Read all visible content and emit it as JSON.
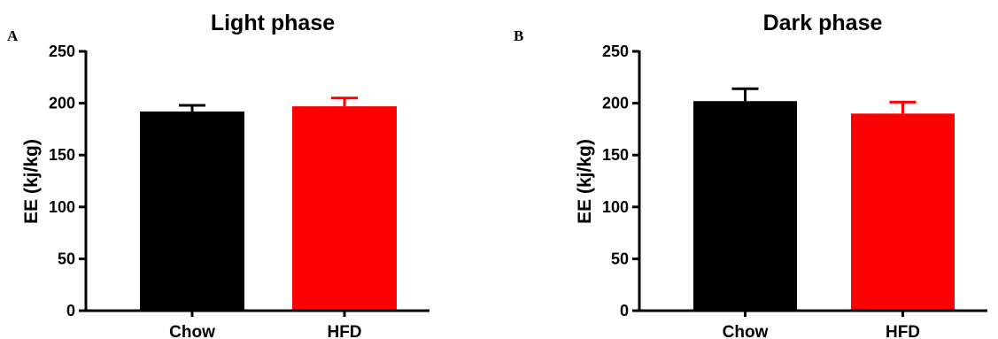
{
  "chart_data": [
    {
      "type": "bar",
      "panel": "A",
      "title": "Light phase",
      "xlabel": "",
      "ylabel": "EE (kj/kg)",
      "ylim": [
        0,
        250
      ],
      "yticks": [
        0,
        50,
        100,
        150,
        200,
        250
      ],
      "categories": [
        "Chow",
        "HFD"
      ],
      "values": [
        192,
        197
      ],
      "errors": [
        6,
        8
      ],
      "colors": [
        "#000000",
        "#ff0000"
      ],
      "grid": false,
      "legend": "none"
    },
    {
      "type": "bar",
      "panel": "B",
      "title": "Dark phase",
      "xlabel": "",
      "ylabel": "EE (kj/kg)",
      "ylim": [
        0,
        250
      ],
      "yticks": [
        0,
        50,
        100,
        150,
        200,
        250
      ],
      "categories": [
        "Chow",
        "HFD"
      ],
      "values": [
        202,
        190
      ],
      "errors": [
        12,
        11
      ],
      "colors": [
        "#000000",
        "#ff0000"
      ],
      "grid": false,
      "legend": "none"
    }
  ]
}
